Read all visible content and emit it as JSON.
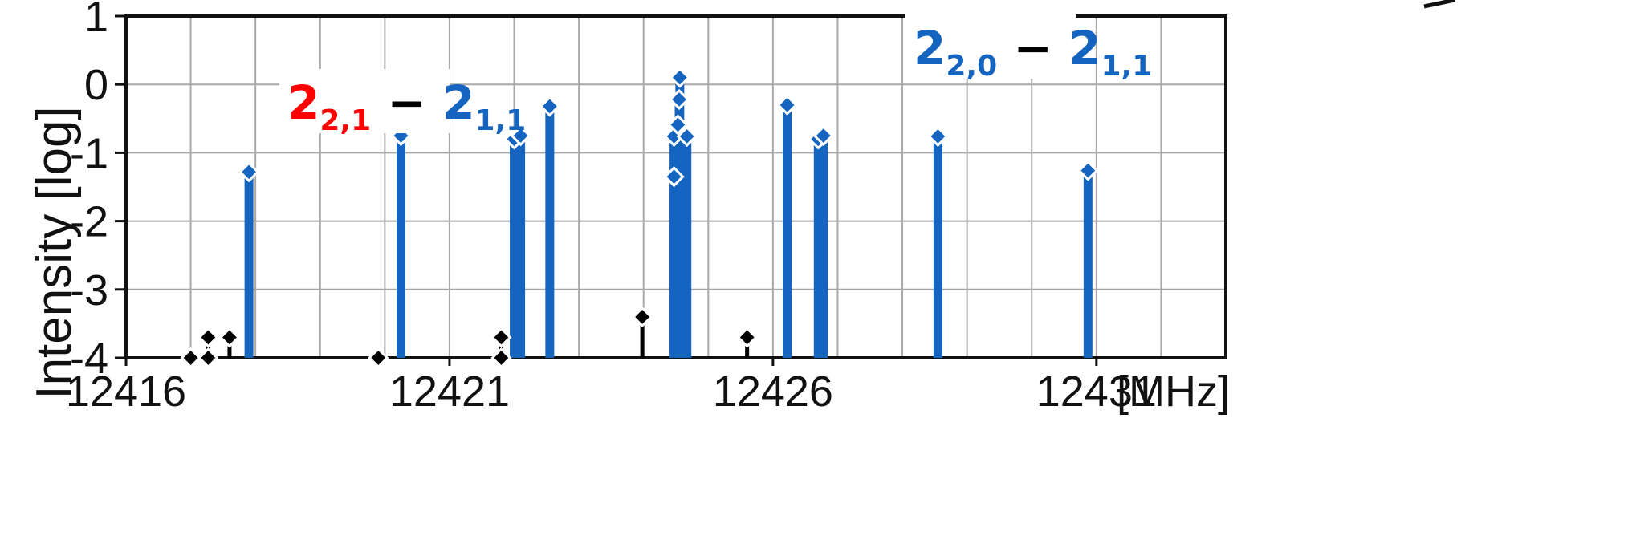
{
  "chart_data": {
    "type": "stem",
    "ylabel": "Intensity [log]",
    "x_unit": "[MHz]",
    "xlim": [
      12416,
      12433
    ],
    "ylim": [
      -4,
      1
    ],
    "x_ticks": [
      12416,
      12421,
      12426,
      12431
    ],
    "y_ticks": [
      1,
      0,
      -1,
      -2,
      -3,
      -4
    ],
    "grid": true,
    "annotations": [
      {
        "id": "left",
        "upper_main": "2",
        "upper_sub": "2,1",
        "dash": "−",
        "lower_main": "2",
        "lower_sub": "1,1",
        "upper_color": "#ff0000",
        "lower_color": "#1565c0"
      },
      {
        "id": "right",
        "upper_main": "2",
        "upper_sub": "2,0",
        "dash": "−",
        "lower_main": "2",
        "lower_sub": "1,1",
        "upper_color": "#1565c0",
        "lower_color": "#1565c0"
      }
    ],
    "series": [
      {
        "color": "#1565c0",
        "points": [
          [
            12417.9,
            -1.28
          ],
          [
            12420.25,
            -0.75
          ],
          [
            12422.0,
            -0.8
          ],
          [
            12422.1,
            -0.75
          ],
          [
            12422.55,
            -0.32
          ],
          [
            12426.22,
            -0.3
          ],
          [
            12426.7,
            -0.8
          ],
          [
            12426.78,
            -0.75
          ],
          [
            12424.47,
            -1.35
          ],
          [
            12424.47,
            -0.76
          ],
          [
            12424.53,
            -0.59
          ],
          [
            12424.55,
            -0.22
          ],
          [
            12424.56,
            0.1
          ],
          [
            12424.67,
            -0.76
          ],
          [
            12428.55,
            -0.76
          ],
          [
            12430.87,
            -1.26
          ]
        ]
      },
      {
        "color": "#000000",
        "points": [
          [
            12417.0,
            -4
          ],
          [
            12417.27,
            -4
          ],
          [
            12417.27,
            -3.7
          ],
          [
            12417.6,
            -3.7
          ],
          [
            12419.9,
            -4
          ],
          [
            12421.8,
            -3.7
          ],
          [
            12421.8,
            -4
          ],
          [
            12423.98,
            -3.4
          ],
          [
            12425.6,
            -3.7
          ]
        ]
      }
    ]
  }
}
